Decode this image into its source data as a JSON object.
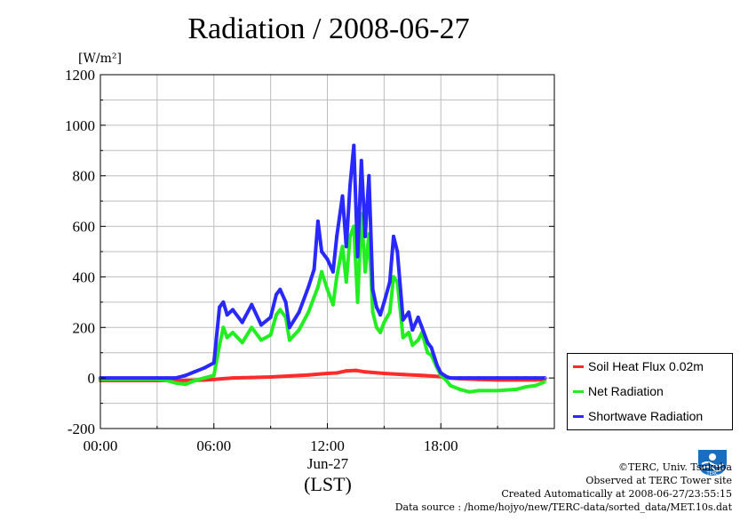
{
  "title": "Radiation / 2008-06-27",
  "chart_data": {
    "type": "line",
    "title": "Radiation / 2008-06-27",
    "ylabel": "[W/m²]",
    "xlabel": "(LST)",
    "date_label": "Jun-27",
    "ylim": [
      -200,
      1200
    ],
    "yticks": [
      "1200",
      "1000",
      "800",
      "600",
      "400",
      "200",
      "0",
      "-200"
    ],
    "ytick_values": [
      1200,
      1000,
      800,
      600,
      400,
      200,
      0,
      -200
    ],
    "xlim": [
      0,
      24
    ],
    "xticks": [
      "00:00",
      "06:00",
      "12:00",
      "18:00"
    ],
    "xtick_values": [
      0,
      6,
      12,
      18
    ],
    "x_unit": "hour of day (LST)",
    "grid": true,
    "legend_position": "outside-right-bottom",
    "series": [
      {
        "name": "Soil Heat Flux 0.02m",
        "color": "#ff2a2a",
        "x": [
          0,
          3,
          4,
          5,
          5.5,
          6,
          7,
          8,
          9,
          10,
          11,
          12,
          12.5,
          13,
          13.5,
          14,
          15,
          16,
          17,
          17.5,
          18,
          18.5,
          19,
          20,
          21,
          22,
          23,
          23.5
        ],
        "values": [
          -10,
          -10,
          -10,
          -9,
          -8,
          -6,
          0,
          2,
          4,
          8,
          12,
          18,
          20,
          28,
          30,
          24,
          18,
          14,
          10,
          8,
          5,
          0,
          -3,
          -6,
          -8,
          -8,
          -8,
          -6
        ]
      },
      {
        "name": "Net Radiation",
        "color": "#22ee22",
        "x": [
          0,
          3,
          3.5,
          4,
          4.5,
          5,
          5.5,
          6,
          6.3,
          6.5,
          6.7,
          7,
          7.5,
          8,
          8.5,
          9,
          9.3,
          9.5,
          9.8,
          10,
          10.5,
          11,
          11.3,
          11.5,
          11.7,
          12,
          12.3,
          12.5,
          12.8,
          13,
          13.2,
          13.4,
          13.6,
          13.8,
          14,
          14.2,
          14.4,
          14.6,
          14.8,
          15,
          15.3,
          15.5,
          15.7,
          16,
          16.3,
          16.5,
          16.8,
          17,
          17.3,
          17.5,
          17.8,
          18,
          18.3,
          18.5,
          19,
          19.5,
          20,
          21,
          22,
          22.5,
          23,
          23.5
        ],
        "values": [
          -5,
          -5,
          -10,
          -20,
          -25,
          -10,
          0,
          10,
          130,
          200,
          160,
          180,
          140,
          200,
          150,
          170,
          250,
          270,
          240,
          150,
          190,
          260,
          320,
          360,
          420,
          350,
          290,
          400,
          520,
          380,
          560,
          600,
          300,
          650,
          420,
          570,
          260,
          200,
          180,
          220,
          260,
          400,
          380,
          160,
          180,
          130,
          150,
          180,
          100,
          90,
          40,
          10,
          -10,
          -30,
          -45,
          -55,
          -50,
          -50,
          -45,
          -35,
          -30,
          -15
        ]
      },
      {
        "name": "Shortwave Radiation",
        "color": "#2828ff",
        "x": [
          0,
          3,
          3.5,
          4,
          4.5,
          5,
          5.5,
          6,
          6.3,
          6.5,
          6.7,
          7,
          7.5,
          8,
          8.5,
          9,
          9.3,
          9.5,
          9.8,
          10,
          10.5,
          11,
          11.3,
          11.5,
          11.7,
          12,
          12.3,
          12.5,
          12.8,
          13,
          13.2,
          13.4,
          13.6,
          13.8,
          14,
          14.2,
          14.4,
          14.6,
          14.8,
          15,
          15.3,
          15.5,
          15.7,
          16,
          16.3,
          16.5,
          16.8,
          17,
          17.3,
          17.5,
          17.8,
          18,
          18.3,
          18.5,
          19,
          19.5,
          20,
          21,
          22,
          22.5,
          23,
          23.5
        ],
        "values": [
          0,
          0,
          0,
          0,
          10,
          25,
          40,
          60,
          280,
          300,
          250,
          270,
          220,
          290,
          210,
          240,
          330,
          350,
          300,
          200,
          260,
          360,
          430,
          620,
          500,
          470,
          420,
          560,
          720,
          520,
          760,
          920,
          480,
          860,
          560,
          800,
          350,
          280,
          250,
          300,
          380,
          560,
          500,
          230,
          260,
          190,
          240,
          200,
          140,
          120,
          50,
          20,
          5,
          0,
          0,
          0,
          0,
          0,
          0,
          0,
          0,
          0
        ]
      }
    ]
  },
  "legend": {
    "items": [
      {
        "label": "Soil Heat Flux 0.02m",
        "color": "#ff2a2a"
      },
      {
        "label": "Net Radiation",
        "color": "#22ee22"
      },
      {
        "label": "Shortwave Radiation",
        "color": "#2828ff"
      }
    ]
  },
  "footer": {
    "copyright": "©TERC, Univ. Tsukuba",
    "site": "Observed at TERC Tower site",
    "created": "Created Automatically at 2008-06-27/23:55:15",
    "source": "Data source : /home/hojyo/new/TERC-data/sorted_data/MET.10s.dat"
  },
  "logo": {
    "text": "TERC",
    "color": "#1a6ec0"
  }
}
